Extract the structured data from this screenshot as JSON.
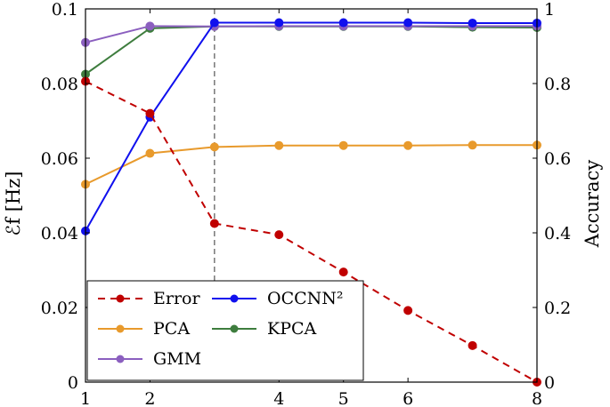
{
  "chart_data": {
    "type": "line",
    "x": [
      1,
      2,
      3,
      4,
      5,
      6,
      7,
      8
    ],
    "xticks": [
      "1",
      "2",
      "4",
      "5",
      "6",
      "8"
    ],
    "xlim": [
      1,
      8
    ],
    "ylabel_left": "ℰf [Hz]",
    "ylabel_right": "Accuracy",
    "ylim_left": [
      0,
      0.1
    ],
    "ylim_right": [
      0,
      1
    ],
    "yticks_left": [
      "0",
      "0.02",
      "0.04",
      "0.06",
      "0.08",
      "0.1"
    ],
    "yticks_right": [
      "0",
      "0.2",
      "0.4",
      "0.6",
      "0.8",
      "1"
    ],
    "vline_x": 3,
    "series": [
      {
        "name": "Error",
        "axis": "left",
        "color": "#c00000",
        "dashed": true,
        "values": [
          0.0806,
          0.072,
          0.0425,
          0.0395,
          0.0295,
          0.0192,
          0.0098,
          0.0
        ]
      },
      {
        "name": "OCCNN²",
        "axis": "right",
        "color": "#1010ee",
        "dashed": false,
        "values": [
          0.405,
          0.71,
          0.963,
          0.963,
          0.963,
          0.963,
          0.962,
          0.962
        ]
      },
      {
        "name": "PCA",
        "axis": "right",
        "color": "#e89a2c",
        "dashed": false,
        "values": [
          0.53,
          0.613,
          0.63,
          0.634,
          0.634,
          0.634,
          0.635,
          0.635
        ]
      },
      {
        "name": "KPCA",
        "axis": "right",
        "color": "#3e7d3e",
        "dashed": false,
        "values": [
          0.825,
          0.948,
          0.953,
          0.953,
          0.953,
          0.953,
          0.951,
          0.95
        ]
      },
      {
        "name": "GMM",
        "axis": "right",
        "color": "#8b5fbf",
        "dashed": false,
        "values": [
          0.91,
          0.954,
          0.953,
          0.954,
          0.954,
          0.954,
          0.954,
          0.954
        ]
      }
    ],
    "legend": {
      "position": "bottom-left",
      "entries": [
        "Error",
        "OCCNN²",
        "PCA",
        "KPCA",
        "GMM"
      ]
    }
  }
}
